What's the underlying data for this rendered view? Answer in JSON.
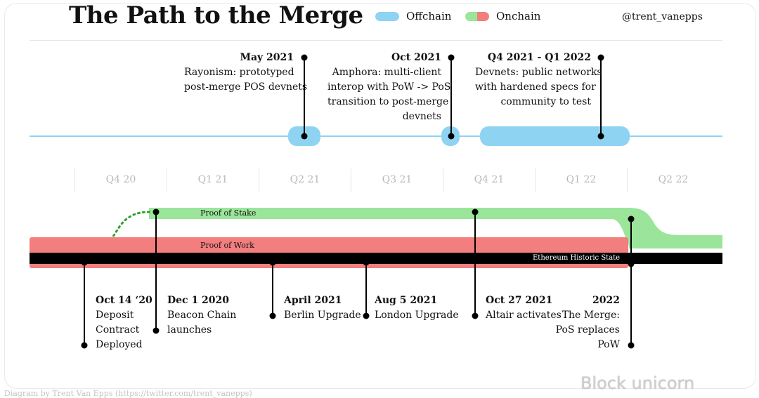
{
  "header": {
    "title": "The Path to the Merge",
    "legend": {
      "offchain_label": "Offchain",
      "onchain_label": "Onchain",
      "offchain_color": "#8fd3f3",
      "onchain_color_a": "#9be59b",
      "onchain_color_b": "#f27e7e"
    },
    "author_handle": "@trent_vanepps"
  },
  "offchain_events": [
    {
      "date": "May 2021",
      "lines": [
        "Rayonism: prototyped",
        "post-merge POS devnets"
      ]
    },
    {
      "date": "Oct 2021",
      "lines": [
        "Amphora: multi-client",
        "interop with PoW -> PoS",
        "transition to post-merge",
        "devnets"
      ]
    },
    {
      "date": "Q4 2021 - Q1 2022",
      "lines": [
        "Devnets: public networks",
        "with hardened specs for",
        "community to test"
      ]
    }
  ],
  "quarters": [
    "Q4 20",
    "Q1 21",
    "Q2 21",
    "Q3 21",
    "Q4 21",
    "Q1 22",
    "Q2 22"
  ],
  "bands": {
    "pos_label": "Proof of Stake",
    "pow_label": "Proof of Work",
    "historic_label": "Ethereum Historic State",
    "pos_color": "#9be59b",
    "pow_color": "#f27e7e",
    "historic_color": "#000000"
  },
  "onchain_events": [
    {
      "date": "Oct 14 ‘20",
      "lines": [
        "Deposit",
        "Contract",
        "Deployed"
      ]
    },
    {
      "date": "Dec 1 2020",
      "lines": [
        "Beacon Chain",
        "launches"
      ]
    },
    {
      "date": "April 2021",
      "lines": [
        "Berlin Upgrade"
      ]
    },
    {
      "date": "Aug 5 2021",
      "lines": [
        "London Upgrade"
      ]
    },
    {
      "date": "Oct 27 2021",
      "lines": [
        "Altair activates"
      ]
    },
    {
      "date": "2022",
      "lines": [
        "The Merge:",
        "PoS replaces",
        "PoW"
      ]
    }
  ],
  "footer": {
    "credit": "Diagram by Trent Van Epps (https://twitter.com/trent_vanepps)",
    "watermark": "Block unicorn"
  }
}
